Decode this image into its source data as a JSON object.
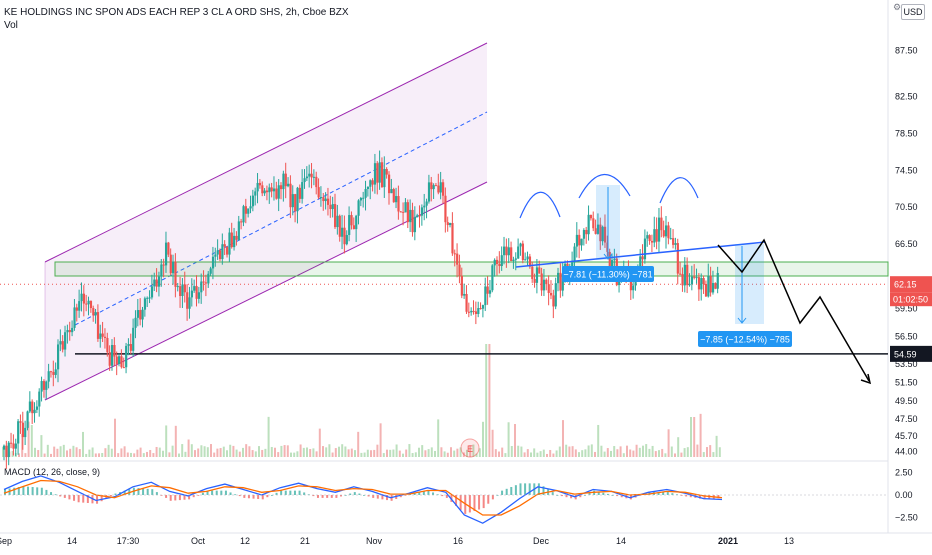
{
  "header": {
    "symbol_line": "KE HOLDINGS INC SPON ADS EACH REP 3 CL A ORD SHS, 2h, Cboe BZX",
    "vol_label": "Vol",
    "currency_button": "USD",
    "settings_glyph": "⚙"
  },
  "chart_data": [
    {
      "type": "candlestick",
      "title": "KE HOLDINGS INC SPON ADS EACH REP 3 CL A ORD SHS, 2h, Cboe BZX",
      "ylim": [
        43.4,
        90.6
      ],
      "y_ticks": [
        44.0,
        45.7,
        47.5,
        49.5,
        51.5,
        53.5,
        56.5,
        59.5,
        62.15,
        66.5,
        70.5,
        74.5,
        78.5,
        82.5,
        87.5
      ],
      "y_tick_labels": [
        "44.00",
        "45.70",
        "47.50",
        "49.50",
        "51.50",
        "53.50",
        "56.50",
        "59.50",
        "62.15",
        "66.50",
        "70.50",
        "74.50",
        "78.50",
        "82.50",
        "87.50"
      ],
      "x_tick_labels": [
        "Sep",
        "14",
        "17:30",
        "Oct",
        "12",
        "21",
        "Nov",
        "16",
        "Dec",
        "14",
        "2021",
        "13"
      ],
      "last_price": 62.15,
      "last_price_label": "62.15",
      "countdown_label": "01:02:50",
      "level_line": 54.59,
      "level_line_label": "54.59",
      "approx_close_path": [
        44.2,
        44.8,
        47.5,
        49.5,
        52.0,
        55.5,
        58.5,
        61.0,
        58.0,
        55.0,
        53.5,
        56.0,
        59.5,
        61.5,
        66.5,
        62.0,
        60.0,
        62.5,
        64.5,
        66.0,
        68.0,
        70.5,
        72.5,
        71.5,
        73.0,
        71.0,
        73.5,
        72.0,
        70.5,
        67.0,
        69.5,
        72.0,
        74.5,
        73.0,
        71.0,
        69.0,
        72.0,
        74.0,
        69.0,
        62.0,
        58.5,
        61.0,
        63.5,
        65.5,
        66.0,
        64.0,
        62.0,
        61.0,
        63.5,
        67.0,
        69.0,
        68.0,
        64.0,
        62.5,
        63.0,
        66.5,
        68.5,
        67.0,
        63.0,
        62.3,
        61.5,
        62.15
      ],
      "annotations": [
        {
          "kind": "measure",
          "label": "−7.81 (−11.30%) −781"
        },
        {
          "kind": "measure",
          "label": "−7.85 (−12.54%) −785"
        },
        {
          "kind": "projection",
          "points": [
            [
              62.15
            ],
            [
              59.7
            ],
            [
              62.8
            ],
            [
              55.0
            ],
            [
              57.5
            ],
            [
              49.6
            ]
          ]
        }
      ],
      "watermark": "E"
    },
    {
      "type": "line",
      "title": "MACD (12, 26, close, 9)",
      "ylim": [
        -3.3,
        3.3
      ],
      "y_ticks": [
        2.5,
        0.0,
        -2.5
      ],
      "y_tick_labels": [
        "2.50",
        "0.00",
        "−2.50"
      ],
      "series": [
        {
          "name": "MACD",
          "color": "#2962ff",
          "values": [
            0.6,
            1.5,
            2.1,
            1.4,
            0.4,
            -0.6,
            -0.2,
            0.9,
            1.4,
            0.4,
            -0.1,
            0.7,
            1.2,
            0.6,
            0.0,
            0.8,
            1.3,
            0.7,
            0.3,
            0.9,
            0.4,
            -0.3,
            0.2,
            0.8,
            0.3,
            -2.2,
            -3.1,
            -1.9,
            -0.4,
            0.9,
            0.5,
            -0.2,
            0.6,
            0.4,
            -0.3,
            0.3,
            0.6,
            0.2,
            -0.4,
            -0.5
          ]
        },
        {
          "name": "Signal",
          "color": "#ff6d00",
          "values": [
            0.2,
            0.9,
            1.6,
            1.5,
            0.9,
            0.0,
            -0.3,
            0.4,
            1.0,
            0.8,
            0.2,
            0.4,
            0.9,
            0.8,
            0.3,
            0.5,
            1.0,
            0.9,
            0.5,
            0.7,
            0.6,
            0.1,
            0.1,
            0.5,
            0.5,
            -0.9,
            -2.2,
            -2.2,
            -1.2,
            0.1,
            0.5,
            0.1,
            0.3,
            0.4,
            0.0,
            0.1,
            0.4,
            0.3,
            -0.1,
            -0.3
          ]
        }
      ]
    }
  ],
  "colors": {
    "up": "#26a69a",
    "down": "#ef5350",
    "channel": "#9c27b0",
    "trend": "#2962ff",
    "measure": "#2196f3",
    "level": "#131722",
    "zone_border": "#4caf50"
  }
}
